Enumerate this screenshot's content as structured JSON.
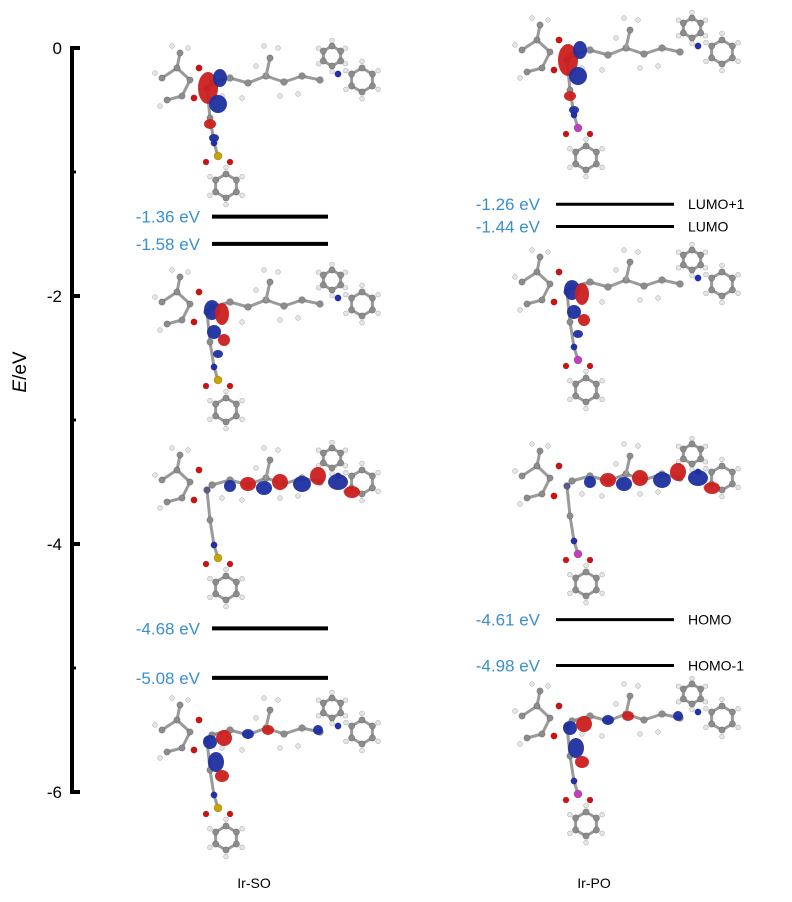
{
  "chart_data": {
    "type": "energy-level diagram",
    "ylabel": {
      "italic": "E",
      "rest": "/eV"
    },
    "ylim": [
      -6,
      0
    ],
    "major_ticks": [
      0,
      -2,
      -4,
      -6
    ],
    "tick_labels": [
      "0",
      "-2",
      "-4",
      "-6"
    ],
    "minor_ticks": [
      -1,
      -3,
      -5
    ],
    "unit": "eV",
    "compounds": [
      {
        "name": "Ir-SO",
        "levels": [
          {
            "orbital": "LUMO+1",
            "energy": -1.36,
            "label": "-1.36 eV",
            "show_name": false
          },
          {
            "orbital": "LUMO",
            "energy": -1.58,
            "label": "-1.58 eV",
            "show_name": false
          },
          {
            "orbital": "HOMO",
            "energy": -4.68,
            "label": "-4.68 eV",
            "show_name": false
          },
          {
            "orbital": "HOMO-1",
            "energy": -5.08,
            "label": "-5.08 eV",
            "show_name": false
          }
        ],
        "orbital_images": [
          "LUMO+1",
          "LUMO",
          "HOMO",
          "HOMO-1"
        ],
        "heteroatom": "S"
      },
      {
        "name": "Ir-PO",
        "levels": [
          {
            "orbital": "LUMO+1",
            "energy": -1.26,
            "label": "-1.26 eV",
            "show_name": true
          },
          {
            "orbital": "LUMO",
            "energy": -1.44,
            "label": "-1.44 eV",
            "show_name": true
          },
          {
            "orbital": "HOMO",
            "energy": -4.61,
            "label": "-4.61 eV",
            "show_name": true
          },
          {
            "orbital": "HOMO-1",
            "energy": -4.98,
            "label": "-4.98 eV",
            "show_name": true
          }
        ],
        "orbital_images": [
          "LUMO+1",
          "LUMO",
          "HOMO",
          "HOMO-1"
        ],
        "heteroatom": "P"
      }
    ]
  },
  "colors": {
    "energy_label": "#3a8fd0",
    "level_line": "#000000",
    "lobe_positive": "#cc1f1f",
    "lobe_negative": "#1f2fa0",
    "carbon": "#8c8c8c",
    "hydrogen": "#e6e6e6",
    "oxygen": "#d21010",
    "nitrogen": "#2030b0",
    "sulfur": "#c8a400",
    "phosphorus": "#c040c0"
  }
}
